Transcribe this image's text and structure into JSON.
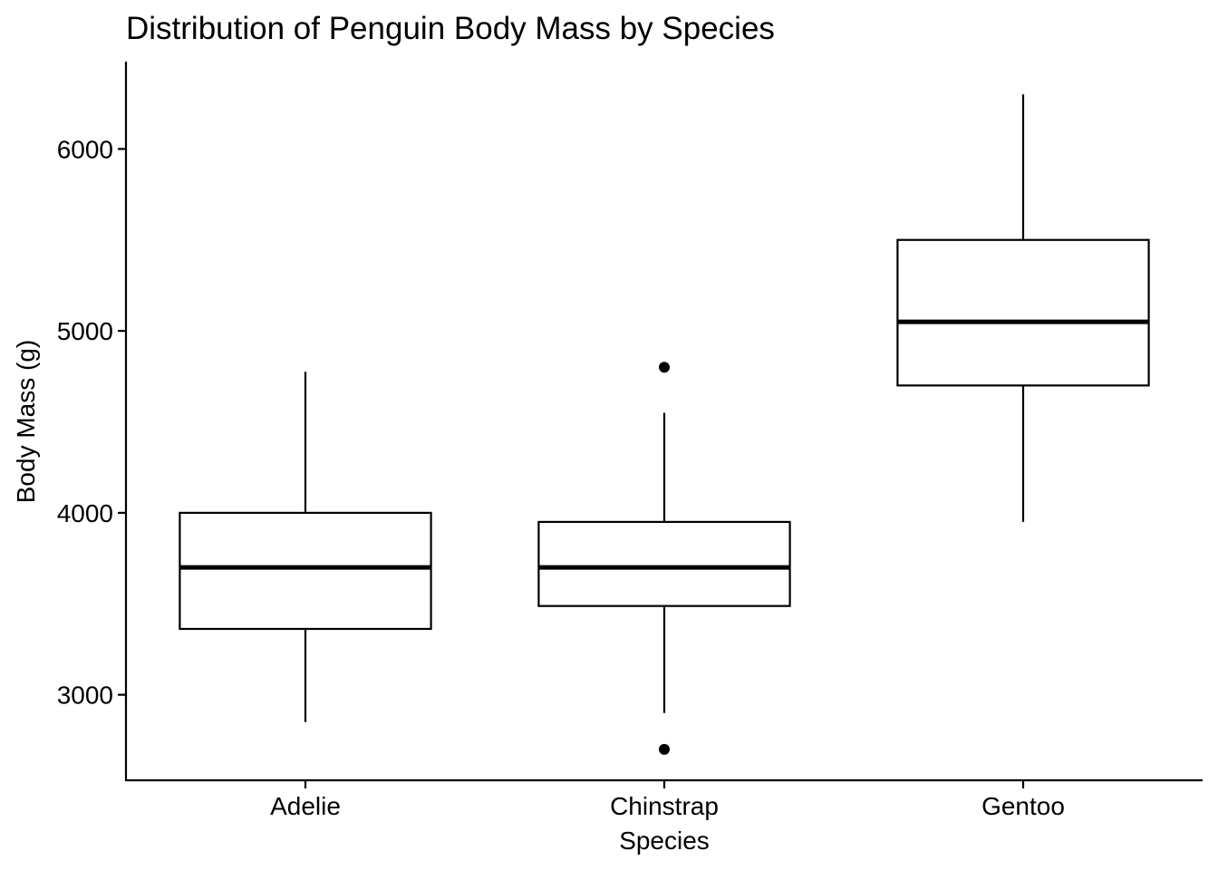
{
  "chart_data": {
    "type": "boxplot",
    "title": "Distribution of Penguin Body Mass by Species",
    "xlabel": "Species",
    "ylabel": "Body Mass (g)",
    "ylim": [
      2530,
      6480
    ],
    "y_ticks": [
      3000,
      4000,
      5000,
      6000
    ],
    "categories": [
      "Adelie",
      "Chinstrap",
      "Gentoo"
    ],
    "boxes": [
      {
        "category": "Adelie",
        "whisker_low": 2850,
        "q1": 3362,
        "median": 3700,
        "q3": 4000,
        "whisker_high": 4775,
        "outliers": []
      },
      {
        "category": "Chinstrap",
        "whisker_low": 2900,
        "q1": 3488,
        "median": 3700,
        "q3": 3950,
        "whisker_high": 4550,
        "outliers": [
          4800,
          2700
        ]
      },
      {
        "category": "Gentoo",
        "whisker_low": 3950,
        "q1": 4700,
        "median": 5050,
        "q3": 5500,
        "whisker_high": 6300,
        "outliers": []
      }
    ],
    "grid": false,
    "legend": "none",
    "colors": {
      "box_fill": "#ffffff",
      "line": "#000000"
    }
  }
}
